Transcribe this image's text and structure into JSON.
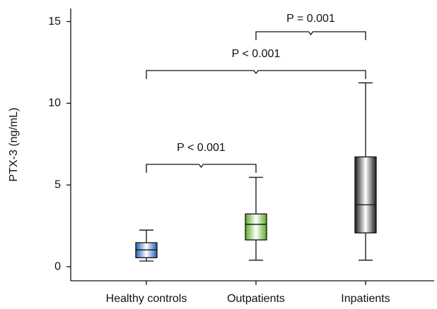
{
  "chart_data": {
    "type": "box",
    "y_label": "PTX-3 (ng/mL)",
    "categories": [
      "Healthy controls",
      "Outpatients",
      "Inpatients"
    ],
    "boxes": [
      {
        "min": 0.35,
        "q1": 0.55,
        "median": 1.03,
        "q3": 1.47,
        "max": 2.24
      },
      {
        "min": 0.4,
        "q1": 1.64,
        "median": 2.59,
        "q3": 3.23,
        "max": 5.47
      },
      {
        "min": 0.4,
        "q1": 2.07,
        "median": 3.79,
        "q3": 6.72,
        "max": 11.25
      }
    ],
    "colors": [
      "#1d5fb4",
      "#5ca828",
      "#1a1a1a"
    ],
    "annotations": [
      "P < 0.001",
      "P < 0.001",
      "P = 0.001"
    ],
    "ylim": [
      -0.86,
      15.8
    ],
    "yticks": [
      0,
      5,
      10,
      15
    ]
  }
}
